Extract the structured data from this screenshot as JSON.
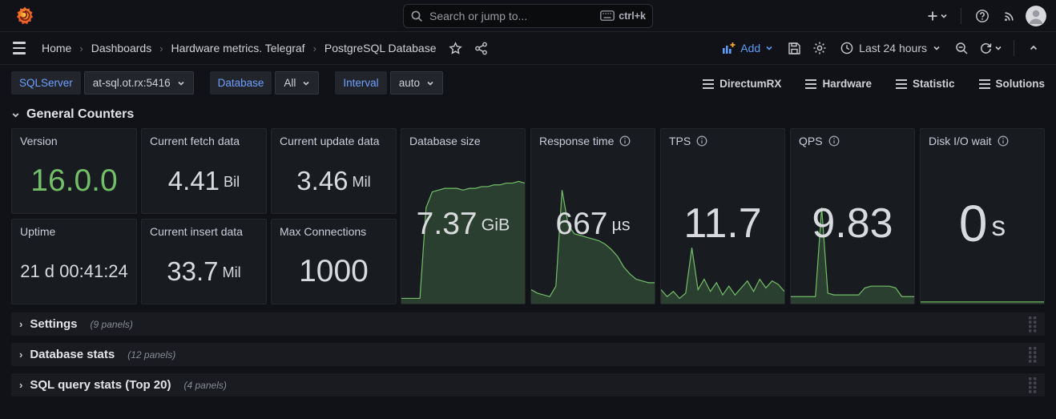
{
  "topnav": {
    "search_placeholder": "Search or jump to...",
    "search_shortcut": "ctrl+k"
  },
  "breadcrumbs": [
    "Home",
    "Dashboards",
    "Hardware metrics. Telegraf",
    "PostgreSQL Database"
  ],
  "toolbar": {
    "add_label": "Add",
    "time_range": "Last 24 hours"
  },
  "filters": [
    {
      "label": "SQLServer",
      "value": "at-sql.ot.rx:5416"
    },
    {
      "label": "Database",
      "value": "All"
    },
    {
      "label": "Interval",
      "value": "auto"
    }
  ],
  "dashboard_links": [
    "DirectumRX",
    "Hardware",
    "Statistic",
    "Solutions"
  ],
  "section_title": "General Counters",
  "colors": {
    "accent_blue": "#5b9cf6",
    "stat_green": "#73bf69",
    "stat_text": "#d9dade",
    "spark_line": "#73bf69",
    "spark_fill": "rgba(115,191,105,0.22)"
  },
  "panels": {
    "small": [
      {
        "title": "Version",
        "value": "16.0.0",
        "suffix": "",
        "size": "lg",
        "color": "#73bf69"
      },
      {
        "title": "Current fetch data",
        "value": "4.41",
        "suffix": "Bil",
        "size": "md"
      },
      {
        "title": "Current update data",
        "value": "3.46",
        "suffix": "Mil",
        "size": "md"
      },
      {
        "title": "Uptime",
        "value": "21 d 00:41:24",
        "suffix": "",
        "size": "sm"
      },
      {
        "title": "Current insert data",
        "value": "33.7",
        "suffix": "Mil",
        "size": "md"
      },
      {
        "title": "Max Connections",
        "value": "1000",
        "suffix": "",
        "size": "lg"
      }
    ],
    "tall": [
      {
        "title": "Database size",
        "value": "7.37",
        "suffix": "GiB",
        "size": "lg",
        "info": false,
        "sparkline": [
          3,
          3,
          3,
          3,
          55,
          64,
          65,
          66,
          66,
          66,
          65,
          66,
          66,
          67,
          67,
          68,
          68,
          69,
          69,
          70,
          69
        ]
      },
      {
        "title": "Response time",
        "value": "667",
        "suffix": "µs",
        "size": "lg",
        "info": true,
        "sparkline": [
          8,
          6,
          5,
          4,
          10,
          65,
          45,
          40,
          39,
          38,
          37,
          36,
          34,
          31,
          27,
          21,
          17,
          14,
          13,
          12,
          12
        ]
      },
      {
        "title": "TPS",
        "value": "11.7",
        "suffix": "",
        "size": "xl",
        "info": true,
        "sparkline": [
          8,
          4,
          7,
          3,
          6,
          32,
          8,
          14,
          7,
          12,
          5,
          10,
          5,
          9,
          13,
          7,
          14,
          9,
          13,
          11,
          7
        ]
      },
      {
        "title": "QPS",
        "value": "9.83",
        "suffix": "",
        "size": "xl",
        "info": true,
        "sparkline": [
          4,
          4,
          4,
          4,
          4,
          55,
          6,
          5,
          5,
          5,
          5,
          5,
          9,
          10,
          10,
          10,
          10,
          9,
          4,
          4,
          4
        ]
      },
      {
        "title": "Disk I/O wait",
        "value": "0",
        "suffix": "s",
        "size": "xxl",
        "info": true,
        "sparkline": [
          1,
          1,
          1,
          1,
          1,
          1,
          1,
          1,
          1,
          1,
          1,
          1,
          1,
          1,
          1,
          1,
          1,
          1,
          1,
          1,
          1
        ]
      }
    ]
  },
  "collapsed_rows": [
    {
      "title": "Settings",
      "count": "(9 panels)"
    },
    {
      "title": "Database stats",
      "count": "(12 panels)"
    },
    {
      "title": "SQL query stats (Top 20)",
      "count": "(4 panels)"
    }
  ]
}
